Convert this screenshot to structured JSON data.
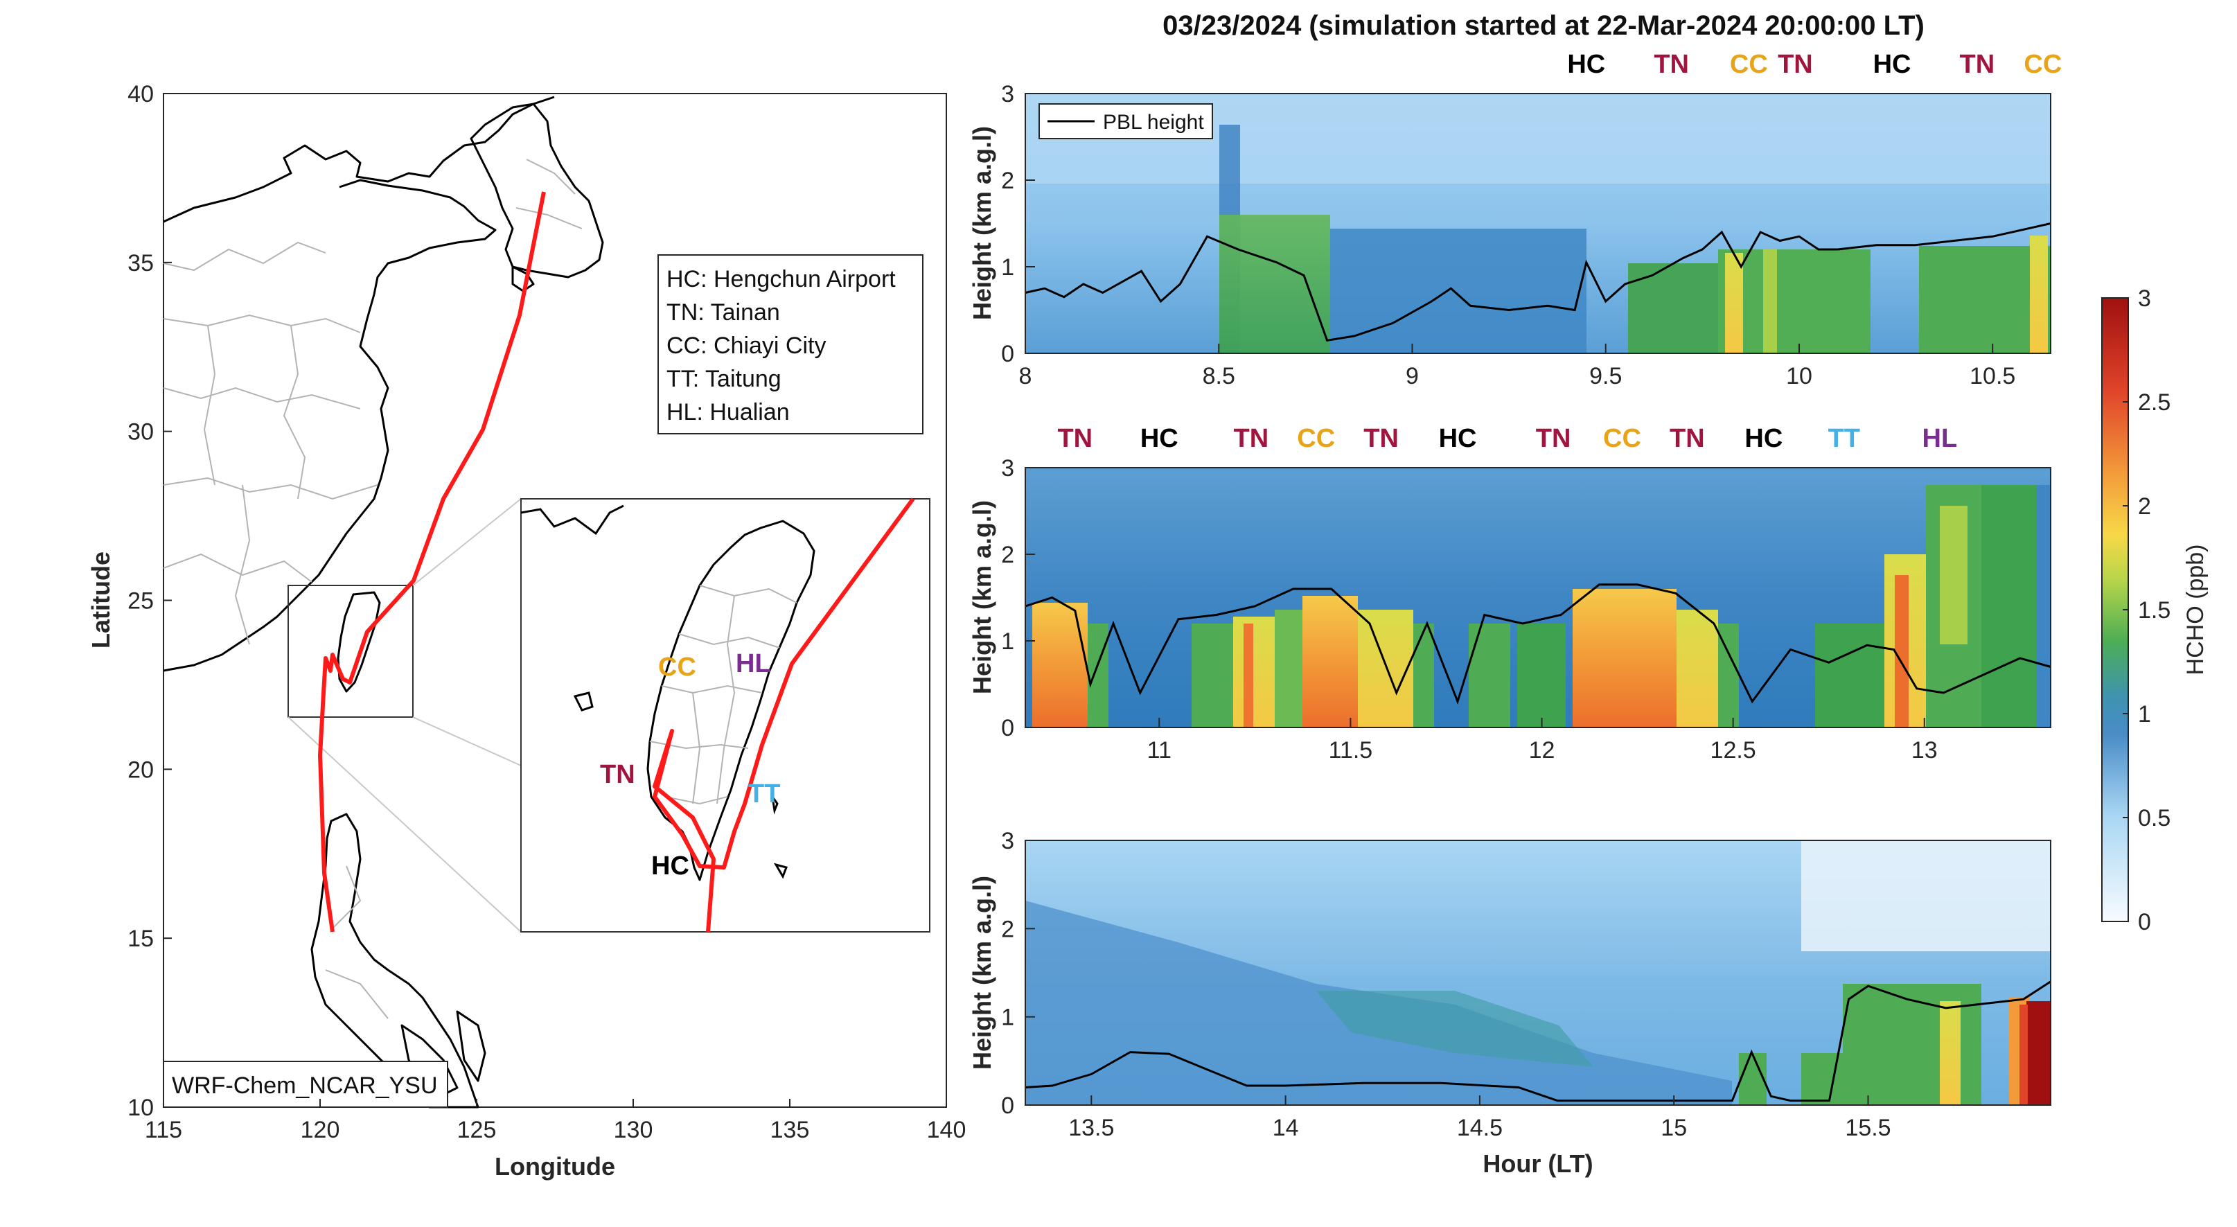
{
  "title": "03/23/2024 (simulation started at 22-Mar-2024 20:00:00 LT)",
  "colors": {
    "track": "#ff1a1a",
    "HC": "#000000",
    "TN": "#a0153e",
    "CC": "#e8a317",
    "TT": "#43b0e6",
    "HL": "#7a2c91"
  },
  "chart_data": [
    {
      "type": "map",
      "xlabel": "Longitude",
      "ylabel": "Latitude",
      "xlim": [
        115,
        140
      ],
      "ylim": [
        10,
        40
      ],
      "xticks": [
        "115",
        "120",
        "125",
        "130",
        "135",
        "140"
      ],
      "yticks": [
        "10",
        "15",
        "20",
        "25",
        "30",
        "35",
        "40"
      ],
      "legend_lines": [
        "HC: Hengchun Airport",
        "TN: Tainan",
        "CC: Chiayi City",
        "TT: Taitung",
        "HL: Hualian"
      ],
      "model_label": "WRF-Chem_NCAR_YSU",
      "inset_xlim": [
        119,
        123
      ],
      "inset_ylim": [
        21.5,
        25.5
      ],
      "inset_labels": [
        "CC",
        "HL",
        "TN",
        "TT",
        "HC"
      ],
      "flight_track": [
        [
          127.0,
          37.0
        ],
        [
          126.3,
          33.3
        ],
        [
          125.0,
          30.0
        ],
        [
          123.0,
          27.0
        ],
        [
          121.7,
          25.4
        ],
        [
          121.3,
          24.0
        ],
        [
          120.8,
          23.0
        ],
        [
          120.5,
          22.5
        ],
        [
          120.3,
          22.0
        ],
        [
          120.2,
          19.0
        ],
        [
          120.2,
          17.0
        ],
        [
          120.1,
          15.3
        ]
      ],
      "inset_track": [
        [
          123.2,
          25.5
        ],
        [
          121.7,
          24.4
        ],
        [
          121.2,
          23.4
        ],
        [
          120.9,
          22.5
        ],
        [
          120.8,
          22.0
        ],
        [
          120.7,
          21.7
        ],
        [
          120.65,
          22.0
        ],
        [
          120.2,
          22.9
        ],
        [
          120.45,
          23.4
        ],
        [
          120.2,
          23.0
        ],
        [
          120.7,
          22.0
        ]
      ]
    },
    {
      "type": "heatmap",
      "xlabel": "",
      "ylabel": "Height (km a.g.l)",
      "xlim": [
        8.0,
        10.65
      ],
      "ylim": [
        0,
        3
      ],
      "xticks": [
        "8",
        "8.5",
        "9",
        "9.5",
        "10",
        "10.5"
      ],
      "yticks": [
        "0",
        "1",
        "2",
        "3"
      ],
      "legend": "PBL height",
      "site_labels": [
        {
          "x": 9.45,
          "label": "HC"
        },
        {
          "x": 9.67,
          "label": "TN"
        },
        {
          "x": 9.87,
          "label": "CC"
        },
        {
          "x": 9.99,
          "label": "TN"
        },
        {
          "x": 10.24,
          "label": "HC"
        },
        {
          "x": 10.46,
          "label": "TN"
        },
        {
          "x": 10.63,
          "label": "CC"
        }
      ],
      "pbl_x": [
        8.0,
        8.05,
        8.1,
        8.15,
        8.2,
        8.3,
        8.35,
        8.4,
        8.47,
        8.55,
        8.65,
        8.72,
        8.78,
        8.85,
        8.95,
        9.05,
        9.1,
        9.15,
        9.25,
        9.35,
        9.42,
        9.45,
        9.5,
        9.55,
        9.62,
        9.7,
        9.75,
        9.8,
        9.85,
        9.9,
        9.95,
        10.0,
        10.05,
        10.1,
        10.2,
        10.3,
        10.4,
        10.5,
        10.6,
        10.65
      ],
      "pbl_y": [
        0.7,
        0.75,
        0.65,
        0.8,
        0.7,
        0.95,
        0.6,
        0.8,
        1.35,
        1.2,
        1.05,
        0.9,
        0.15,
        0.2,
        0.35,
        0.6,
        0.75,
        0.55,
        0.5,
        0.55,
        0.5,
        1.05,
        0.6,
        0.8,
        0.9,
        1.1,
        1.2,
        1.4,
        1.0,
        1.4,
        1.3,
        1.35,
        1.2,
        1.2,
        1.25,
        1.25,
        1.3,
        1.35,
        1.45,
        1.5
      ]
    },
    {
      "type": "heatmap",
      "xlabel": "",
      "ylabel": "Height (km a.g.l)",
      "xlim": [
        10.65,
        13.33
      ],
      "ylim": [
        0,
        3
      ],
      "xticks": [
        "11",
        "11.5",
        "12",
        "12.5",
        "13"
      ],
      "yticks": [
        "0",
        "1",
        "2",
        "3"
      ],
      "site_labels": [
        {
          "x": 10.78,
          "label": "TN"
        },
        {
          "x": 11.0,
          "label": "HC"
        },
        {
          "x": 11.24,
          "label": "TN"
        },
        {
          "x": 11.41,
          "label": "CC"
        },
        {
          "x": 11.58,
          "label": "TN"
        },
        {
          "x": 11.78,
          "label": "HC"
        },
        {
          "x": 12.03,
          "label": "TN"
        },
        {
          "x": 12.21,
          "label": "CC"
        },
        {
          "x": 12.38,
          "label": "TN"
        },
        {
          "x": 12.58,
          "label": "HC"
        },
        {
          "x": 12.79,
          "label": "TT"
        },
        {
          "x": 13.04,
          "label": "HL"
        }
      ],
      "pbl_x": [
        10.65,
        10.72,
        10.78,
        10.82,
        10.88,
        10.95,
        11.05,
        11.15,
        11.25,
        11.35,
        11.45,
        11.55,
        11.62,
        11.7,
        11.78,
        11.85,
        11.95,
        12.05,
        12.15,
        12.25,
        12.35,
        12.45,
        12.55,
        12.65,
        12.75,
        12.85,
        12.92,
        12.98,
        13.05,
        13.15,
        13.25,
        13.33
      ],
      "pbl_y": [
        1.4,
        1.5,
        1.35,
        0.5,
        1.2,
        0.4,
        1.25,
        1.3,
        1.4,
        1.6,
        1.6,
        1.2,
        0.4,
        1.2,
        0.3,
        1.3,
        1.2,
        1.3,
        1.65,
        1.65,
        1.55,
        1.2,
        0.3,
        0.9,
        0.75,
        0.95,
        0.9,
        0.45,
        0.4,
        0.6,
        0.8,
        0.7
      ]
    },
    {
      "type": "heatmap",
      "xlabel": "Hour (LT)",
      "ylabel": "Height (km a.g.l)",
      "xlim": [
        13.33,
        15.97
      ],
      "ylim": [
        0,
        3
      ],
      "xticks": [
        "13.5",
        "14",
        "14.5",
        "15",
        "15.5"
      ],
      "yticks": [
        "0",
        "1",
        "2",
        "3"
      ],
      "pbl_x": [
        13.33,
        13.4,
        13.5,
        13.6,
        13.7,
        13.8,
        13.9,
        14.0,
        14.2,
        14.4,
        14.6,
        14.7,
        14.9,
        15.1,
        15.15,
        15.2,
        15.25,
        15.3,
        15.4,
        15.45,
        15.5,
        15.6,
        15.7,
        15.8,
        15.9,
        15.97
      ],
      "pbl_y": [
        0.2,
        0.22,
        0.35,
        0.6,
        0.58,
        0.4,
        0.22,
        0.22,
        0.25,
        0.25,
        0.2,
        0.05,
        0.05,
        0.05,
        0.05,
        0.6,
        0.1,
        0.05,
        0.05,
        1.2,
        1.35,
        1.2,
        1.1,
        1.15,
        1.2,
        1.4
      ]
    },
    {
      "type": "colorbar",
      "label": "HCHO (ppb)",
      "range": [
        0,
        3
      ],
      "ticks": [
        "0",
        "0.5",
        "1",
        "1.5",
        "2",
        "2.5",
        "3"
      ]
    }
  ]
}
